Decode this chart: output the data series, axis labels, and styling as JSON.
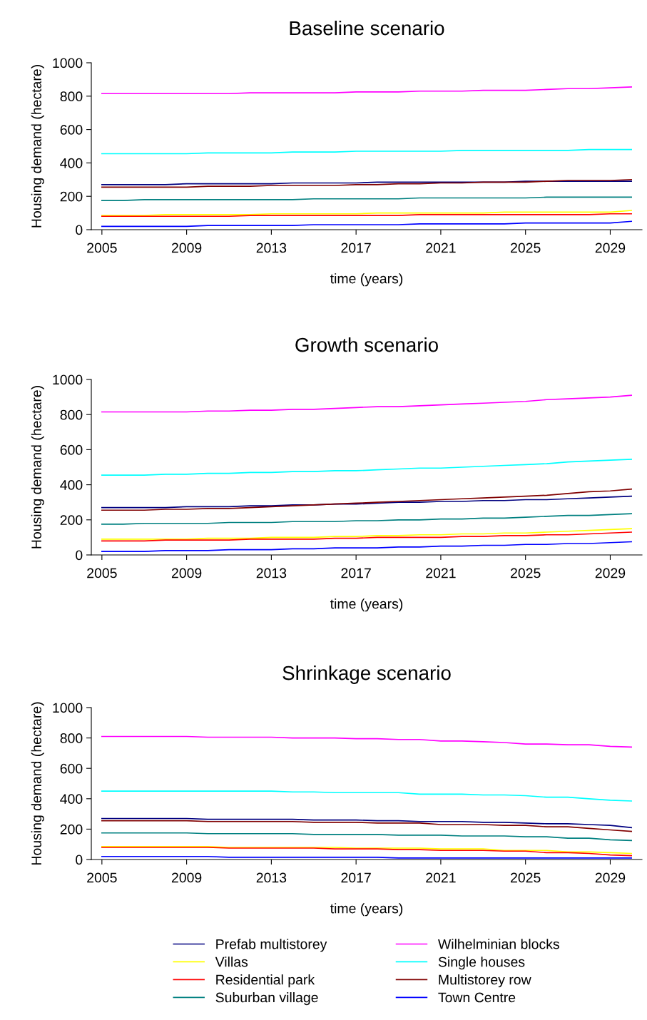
{
  "chart_data": [
    {
      "type": "line",
      "title": "Baseline scenario",
      "xlabel": "time (years)",
      "ylabel": "Housing demand (hectare)",
      "x": [
        2005,
        2006,
        2007,
        2008,
        2009,
        2010,
        2011,
        2012,
        2013,
        2014,
        2015,
        2016,
        2017,
        2018,
        2019,
        2020,
        2021,
        2022,
        2023,
        2024,
        2025,
        2026,
        2027,
        2028,
        2029,
        2030
      ],
      "xlim": [
        2004.5,
        2030.5
      ],
      "xticks": [
        2005,
        2009,
        2013,
        2017,
        2021,
        2025,
        2029
      ],
      "ylim": [
        0,
        1000
      ],
      "yticks": [
        0,
        200,
        400,
        600,
        800,
        1000
      ],
      "grid": false,
      "legend": false,
      "series": [
        {
          "color": "#000080",
          "values": [
            270,
            270,
            270,
            270,
            275,
            275,
            275,
            275,
            275,
            280,
            280,
            280,
            280,
            285,
            285,
            285,
            285,
            285,
            285,
            285,
            290,
            290,
            290,
            290,
            290,
            290
          ]
        },
        {
          "color": "#ff00ff",
          "values": [
            815,
            815,
            815,
            815,
            815,
            815,
            815,
            820,
            820,
            820,
            820,
            820,
            825,
            825,
            825,
            830,
            830,
            830,
            835,
            835,
            835,
            840,
            845,
            845,
            850,
            855
          ]
        },
        {
          "color": "#ffff00",
          "values": [
            85,
            85,
            85,
            90,
            90,
            90,
            90,
            90,
            95,
            95,
            95,
            95,
            95,
            100,
            100,
            100,
            100,
            100,
            100,
            105,
            105,
            105,
            105,
            105,
            105,
            115
          ]
        },
        {
          "color": "#00ffff",
          "values": [
            455,
            455,
            455,
            455,
            455,
            460,
            460,
            460,
            460,
            465,
            465,
            465,
            470,
            470,
            470,
            470,
            470,
            475,
            475,
            475,
            475,
            475,
            475,
            480,
            480,
            480
          ]
        },
        {
          "color": "#ff0000",
          "values": [
            80,
            80,
            80,
            80,
            80,
            80,
            80,
            85,
            85,
            85,
            85,
            85,
            85,
            85,
            85,
            90,
            90,
            90,
            90,
            90,
            90,
            90,
            90,
            90,
            95,
            95
          ]
        },
        {
          "color": "#800000",
          "values": [
            255,
            255,
            255,
            255,
            255,
            260,
            260,
            260,
            265,
            265,
            265,
            265,
            270,
            270,
            275,
            275,
            280,
            280,
            285,
            285,
            285,
            290,
            295,
            295,
            295,
            300
          ]
        },
        {
          "color": "#008080",
          "values": [
            175,
            175,
            180,
            180,
            180,
            180,
            180,
            180,
            180,
            180,
            185,
            185,
            185,
            185,
            185,
            190,
            190,
            190,
            190,
            190,
            190,
            195,
            195,
            195,
            195,
            195
          ]
        },
        {
          "color": "#0000ff",
          "values": [
            20,
            20,
            20,
            20,
            20,
            25,
            25,
            25,
            25,
            25,
            30,
            30,
            30,
            30,
            30,
            35,
            35,
            35,
            35,
            35,
            40,
            40,
            40,
            40,
            40,
            50
          ]
        }
      ]
    },
    {
      "type": "line",
      "title": "Growth scenario",
      "xlabel": "time (years)",
      "ylabel": "Housing demand (hectare)",
      "x": [
        2005,
        2006,
        2007,
        2008,
        2009,
        2010,
        2011,
        2012,
        2013,
        2014,
        2015,
        2016,
        2017,
        2018,
        2019,
        2020,
        2021,
        2022,
        2023,
        2024,
        2025,
        2026,
        2027,
        2028,
        2029,
        2030
      ],
      "xlim": [
        2004.5,
        2030.5
      ],
      "xticks": [
        2005,
        2009,
        2013,
        2017,
        2021,
        2025,
        2029
      ],
      "ylim": [
        0,
        1000
      ],
      "yticks": [
        0,
        200,
        400,
        600,
        800,
        1000
      ],
      "grid": false,
      "legend": false,
      "series": [
        {
          "color": "#000080",
          "values": [
            270,
            270,
            270,
            270,
            275,
            275,
            275,
            280,
            280,
            285,
            285,
            290,
            290,
            295,
            300,
            300,
            305,
            305,
            310,
            310,
            315,
            315,
            320,
            325,
            330,
            335
          ]
        },
        {
          "color": "#ff00ff",
          "values": [
            815,
            815,
            815,
            815,
            815,
            820,
            820,
            825,
            825,
            830,
            830,
            835,
            840,
            845,
            845,
            850,
            855,
            860,
            865,
            870,
            875,
            885,
            890,
            895,
            900,
            910
          ]
        },
        {
          "color": "#ffff00",
          "values": [
            90,
            90,
            90,
            90,
            90,
            95,
            95,
            95,
            100,
            100,
            100,
            105,
            105,
            110,
            110,
            115,
            115,
            120,
            120,
            125,
            125,
            130,
            135,
            140,
            145,
            150
          ]
        },
        {
          "color": "#00ffff",
          "values": [
            455,
            455,
            455,
            460,
            460,
            465,
            465,
            470,
            470,
            475,
            475,
            480,
            480,
            485,
            490,
            495,
            495,
            500,
            505,
            510,
            515,
            520,
            530,
            535,
            540,
            545
          ]
        },
        {
          "color": "#ff0000",
          "values": [
            80,
            80,
            80,
            85,
            85,
            85,
            85,
            90,
            90,
            90,
            90,
            95,
            95,
            100,
            100,
            100,
            100,
            105,
            105,
            110,
            110,
            115,
            115,
            120,
            125,
            130
          ]
        },
        {
          "color": "#800000",
          "values": [
            255,
            255,
            255,
            260,
            260,
            265,
            265,
            270,
            275,
            280,
            285,
            290,
            295,
            300,
            305,
            310,
            315,
            320,
            325,
            330,
            335,
            340,
            350,
            360,
            365,
            375
          ]
        },
        {
          "color": "#008080",
          "values": [
            175,
            175,
            180,
            180,
            180,
            180,
            185,
            185,
            185,
            190,
            190,
            190,
            195,
            195,
            200,
            200,
            205,
            205,
            210,
            210,
            215,
            220,
            225,
            225,
            230,
            235
          ]
        },
        {
          "color": "#0000ff",
          "values": [
            20,
            20,
            20,
            25,
            25,
            25,
            30,
            30,
            30,
            35,
            35,
            40,
            40,
            40,
            45,
            45,
            50,
            50,
            55,
            55,
            60,
            60,
            65,
            65,
            70,
            75
          ]
        }
      ]
    },
    {
      "type": "line",
      "title": "Shrinkage scenario",
      "xlabel": "time (years)",
      "ylabel": "Housing demand (hectare)",
      "x": [
        2005,
        2006,
        2007,
        2008,
        2009,
        2010,
        2011,
        2012,
        2013,
        2014,
        2015,
        2016,
        2017,
        2018,
        2019,
        2020,
        2021,
        2022,
        2023,
        2024,
        2025,
        2026,
        2027,
        2028,
        2029,
        2030
      ],
      "xlim": [
        2004.5,
        2030.5
      ],
      "xticks": [
        2005,
        2009,
        2013,
        2017,
        2021,
        2025,
        2029
      ],
      "ylim": [
        0,
        1000
      ],
      "yticks": [
        0,
        200,
        400,
        600,
        800,
        1000
      ],
      "grid": false,
      "legend": "bottom",
      "series": [
        {
          "name": "Prefab multistorey",
          "color": "#000080",
          "values": [
            270,
            270,
            270,
            270,
            270,
            265,
            265,
            265,
            265,
            265,
            260,
            260,
            260,
            255,
            255,
            250,
            250,
            250,
            245,
            245,
            240,
            235,
            235,
            230,
            225,
            210
          ]
        },
        {
          "name": "Wilhelminian blocks",
          "color": "#ff00ff",
          "values": [
            810,
            810,
            810,
            810,
            810,
            805,
            805,
            805,
            805,
            800,
            800,
            800,
            795,
            795,
            790,
            790,
            780,
            780,
            775,
            770,
            760,
            760,
            755,
            755,
            745,
            740
          ]
        },
        {
          "name": "Villas",
          "color": "#ffff00",
          "values": [
            85,
            85,
            85,
            85,
            85,
            85,
            80,
            80,
            80,
            80,
            80,
            80,
            75,
            75,
            75,
            75,
            70,
            70,
            70,
            60,
            60,
            60,
            50,
            50,
            45,
            40
          ]
        },
        {
          "name": "Single houses",
          "color": "#00ffff",
          "values": [
            450,
            450,
            450,
            450,
            450,
            450,
            450,
            450,
            450,
            445,
            445,
            440,
            440,
            440,
            440,
            430,
            430,
            430,
            425,
            425,
            420,
            410,
            410,
            400,
            390,
            385
          ]
        },
        {
          "name": "Residential park",
          "color": "#ff0000",
          "values": [
            80,
            80,
            80,
            80,
            80,
            80,
            75,
            75,
            75,
            75,
            75,
            70,
            70,
            70,
            65,
            65,
            60,
            60,
            60,
            55,
            55,
            45,
            45,
            40,
            30,
            25
          ]
        },
        {
          "name": "Multistorey row",
          "color": "#800000",
          "values": [
            255,
            255,
            255,
            255,
            255,
            250,
            250,
            250,
            250,
            250,
            245,
            245,
            245,
            240,
            240,
            240,
            230,
            230,
            230,
            225,
            225,
            215,
            215,
            205,
            195,
            185
          ]
        },
        {
          "name": "Suburban village",
          "color": "#008080",
          "values": [
            175,
            175,
            175,
            175,
            175,
            170,
            170,
            170,
            170,
            170,
            165,
            165,
            165,
            165,
            160,
            160,
            160,
            155,
            155,
            155,
            150,
            150,
            140,
            140,
            130,
            125
          ]
        },
        {
          "name": "Town Centre",
          "color": "#0000ff",
          "values": [
            20,
            20,
            20,
            20,
            20,
            20,
            15,
            15,
            15,
            15,
            15,
            15,
            15,
            15,
            10,
            10,
            10,
            10,
            10,
            10,
            10,
            10,
            10,
            10,
            10,
            10
          ]
        }
      ]
    }
  ]
}
